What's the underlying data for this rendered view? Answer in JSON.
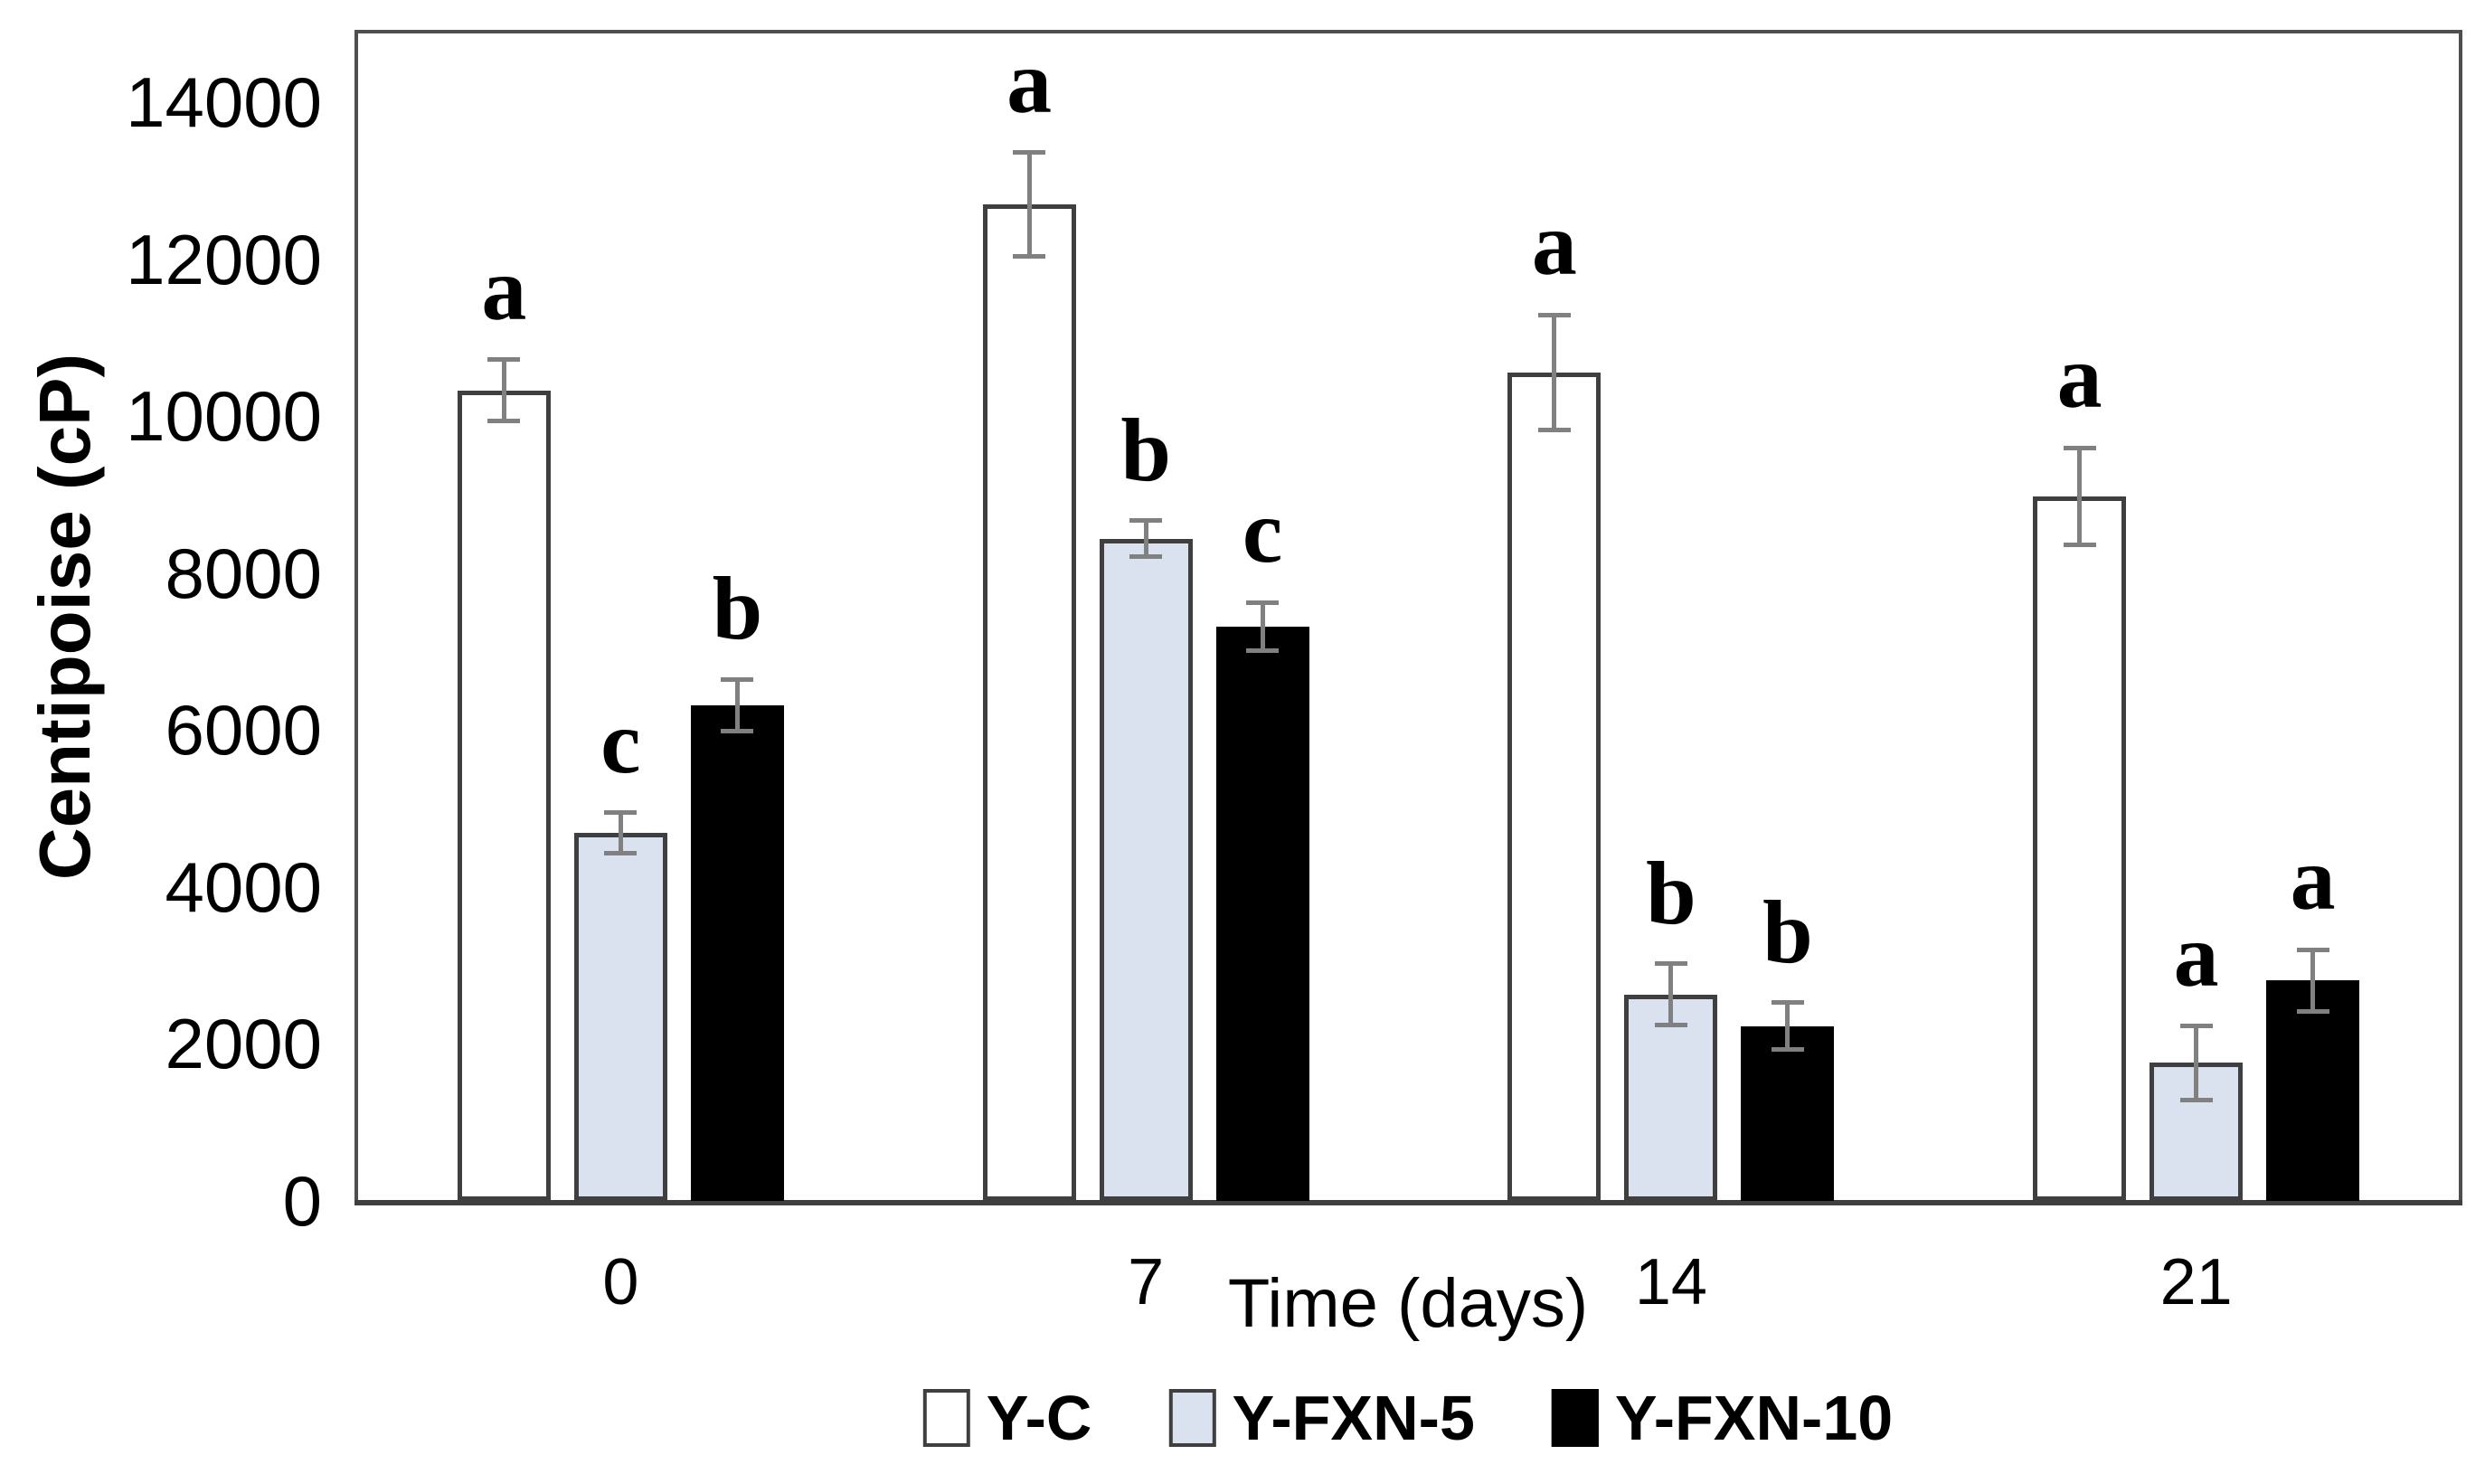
{
  "chart_data": {
    "type": "bar",
    "title": "",
    "xlabel": "Time (days)",
    "ylabel": "Centipoise (cP)",
    "categories": [
      "0",
      "7",
      "14",
      "21"
    ],
    "series": [
      {
        "name": "Y-C",
        "fill": "#ffffff",
        "border": "#3f3f3f",
        "values": [
          10330,
          12700,
          10560,
          8980
        ],
        "errors": [
          390,
          660,
          730,
          620
        ],
        "letters": [
          "a",
          "a",
          "a",
          "a"
        ]
      },
      {
        "name": "Y-FXN-5",
        "fill": "#d9e2ee",
        "border": "#3f3f3f",
        "values": [
          4690,
          8440,
          2630,
          1760
        ],
        "errors": [
          260,
          230,
          390,
          470
        ],
        "letters": [
          "c",
          "b",
          "b",
          "a"
        ]
      },
      {
        "name": "Y-FXN-10",
        "fill": "#000000",
        "border": "#000000",
        "values": [
          6320,
          7320,
          2230,
          2810
        ],
        "errors": [
          330,
          310,
          300,
          390
        ],
        "letters": [
          "b",
          "c",
          "b",
          "a"
        ]
      }
    ],
    "y_ticks": [
      0,
      2000,
      4000,
      6000,
      8000,
      10000,
      12000,
      14000
    ],
    "ylim": [
      0,
      14880
    ],
    "grid": false,
    "legend_position": "bottom",
    "colors": {
      "error_bar": "#808080",
      "frame": "#4f4f4f",
      "baseline": "#3f3f3f",
      "text": "#000000"
    }
  }
}
